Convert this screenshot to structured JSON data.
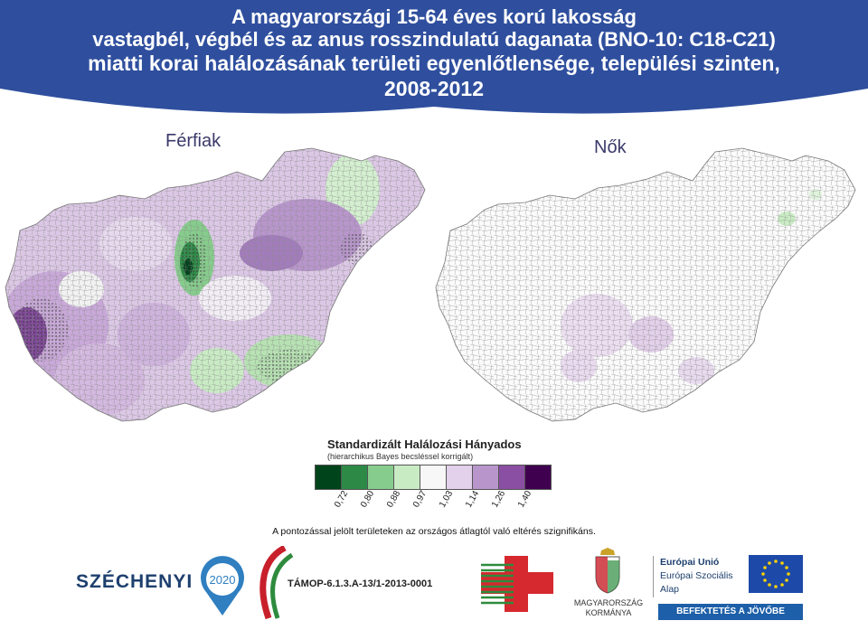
{
  "header": {
    "title_line1": "A magyarországi 15-64 éves korú lakosság",
    "title_line2": "vastagbél, végbél és az anus rosszindulatú daganata (BNO-10: C18-C21)",
    "title_line3": "miatti korai halálozásának területi egyenlőtlensége, települési szinten,",
    "title_line4": "2008-2012",
    "banner_color": "#2f4f9e"
  },
  "maps": {
    "left_label": "Férfiak",
    "right_label": "Nők"
  },
  "legend": {
    "title": "Standardizált Halálozási Hányados",
    "subtitle": "(hierarchikus Bayes becsléssel korrigált)",
    "colors": [
      "#00441b",
      "#2d8a46",
      "#86cc8c",
      "#c9ebc4",
      "#f7f7f7",
      "#e3d0ea",
      "#b896cc",
      "#8a4fa3",
      "#3f004f"
    ],
    "ticks": [
      "0,72",
      "0,80",
      "0,88",
      "0,97",
      "1,03",
      "1,14",
      "1,26",
      "1,40"
    ]
  },
  "footnote": "A pontozással jelölt területeken az országos átlagtól való eltérés szignifikáns.",
  "logos": {
    "szechenyi": "SZÉCHENYI",
    "szechenyi_year": "2020",
    "tamop": "TÁMOP-6.1.3.A-13/1-2013-0001",
    "gov_line1": "MAGYARORSZÁG",
    "gov_line2": "KORMÁNYA",
    "eu_line1": "Európai Unió",
    "eu_line2": "Európai Szociális",
    "eu_line3": "Alap",
    "eu_slogan": "BEFEKTETÉS A JÖVŐBE"
  }
}
